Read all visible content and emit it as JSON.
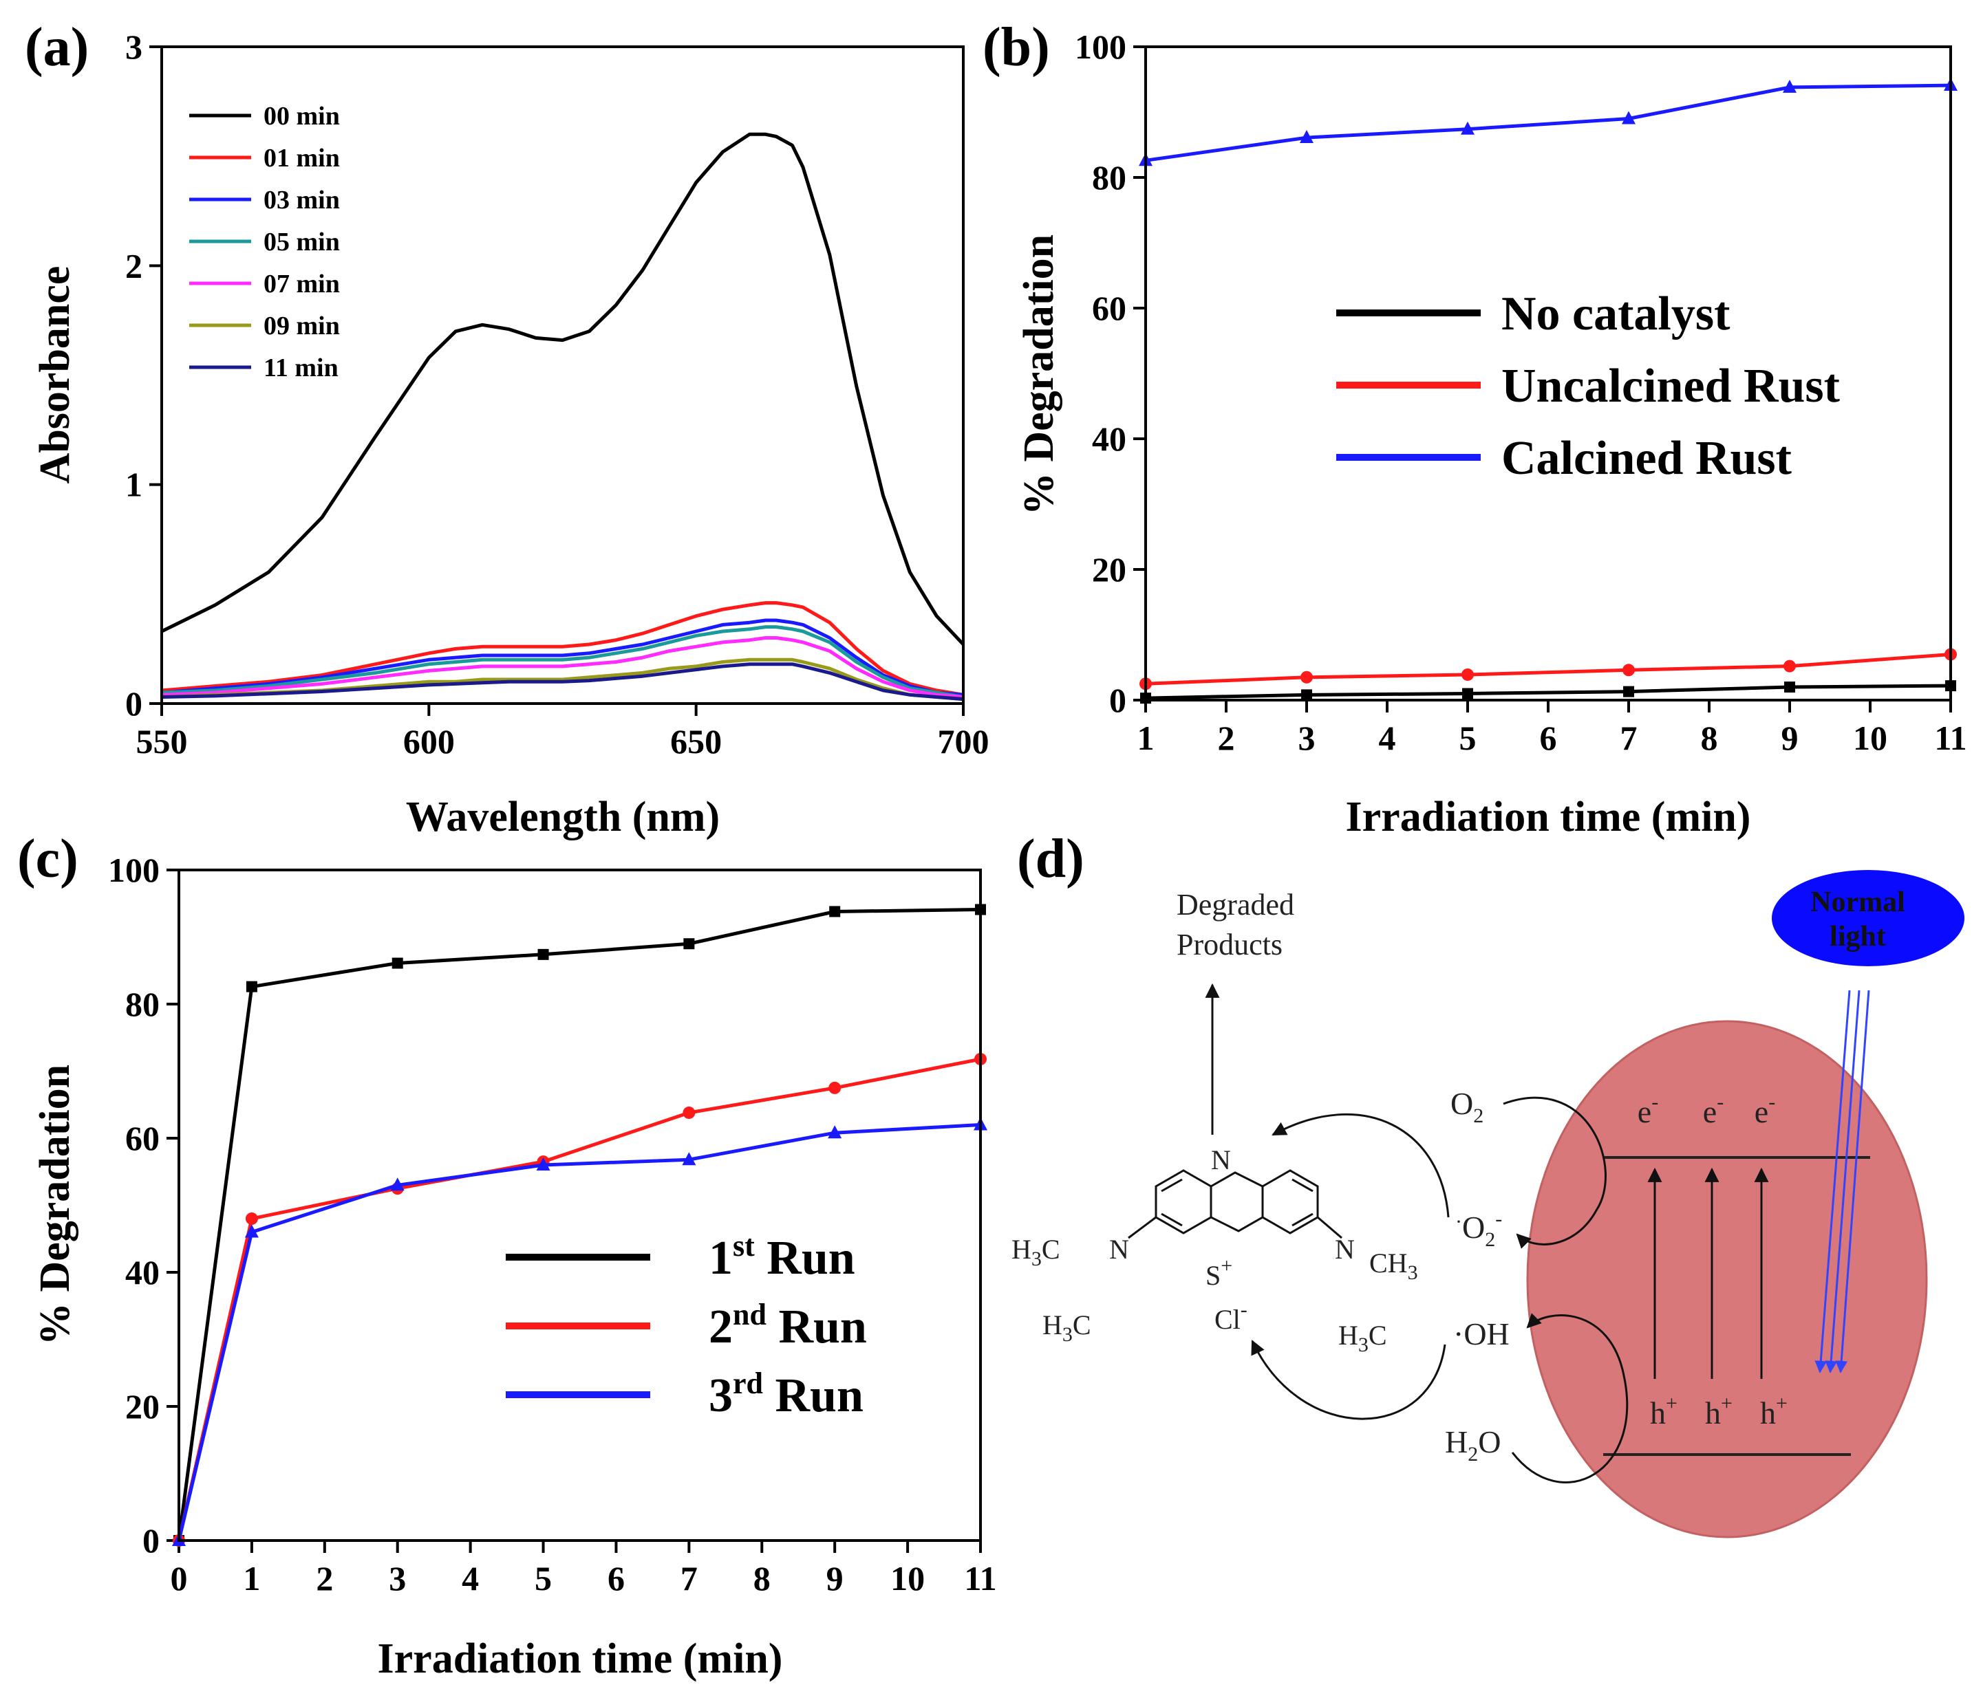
{
  "colors": {
    "black": "#000000",
    "red": "#ff1a1a",
    "blue": "#1a1aff",
    "teal": "#1a9a9a",
    "magenta": "#ff2bff",
    "olive": "#9a9a1a",
    "navy": "#1a1a8c",
    "particle": "#d9787a",
    "light": "#0000ff"
  },
  "chart_data": [
    {
      "panel": "(a)",
      "type": "line",
      "xlabel": "Wavelength (nm)",
      "ylabel": "Absorbance",
      "xlim": [
        550,
        700
      ],
      "ylim": [
        0,
        3
      ],
      "xticks": [
        550,
        600,
        650,
        700
      ],
      "yticks": [
        0,
        1,
        2,
        3
      ],
      "legend_position": "top-left",
      "x": [
        550,
        560,
        570,
        580,
        590,
        600,
        605,
        610,
        615,
        620,
        625,
        630,
        635,
        640,
        645,
        650,
        655,
        660,
        663,
        665,
        668,
        670,
        675,
        680,
        685,
        690,
        695,
        700
      ],
      "series": [
        {
          "name": "00 min",
          "color": "#000000",
          "values": [
            0.33,
            0.45,
            0.6,
            0.85,
            1.22,
            1.58,
            1.7,
            1.73,
            1.71,
            1.67,
            1.66,
            1.7,
            1.82,
            1.98,
            2.18,
            2.38,
            2.52,
            2.6,
            2.6,
            2.59,
            2.55,
            2.45,
            2.05,
            1.45,
            0.95,
            0.6,
            0.4,
            0.27
          ]
        },
        {
          "name": "01 min",
          "color": "#ff1a1a",
          "values": [
            0.06,
            0.08,
            0.1,
            0.13,
            0.18,
            0.23,
            0.25,
            0.26,
            0.26,
            0.26,
            0.26,
            0.27,
            0.29,
            0.32,
            0.36,
            0.4,
            0.43,
            0.45,
            0.46,
            0.46,
            0.45,
            0.44,
            0.37,
            0.25,
            0.15,
            0.09,
            0.06,
            0.04
          ]
        },
        {
          "name": "03 min",
          "color": "#1a1aff",
          "values": [
            0.05,
            0.07,
            0.09,
            0.12,
            0.16,
            0.2,
            0.21,
            0.22,
            0.22,
            0.22,
            0.22,
            0.23,
            0.25,
            0.27,
            0.3,
            0.33,
            0.36,
            0.37,
            0.38,
            0.38,
            0.37,
            0.36,
            0.3,
            0.21,
            0.13,
            0.08,
            0.05,
            0.04
          ]
        },
        {
          "name": "05 min",
          "color": "#1a9a9a",
          "values": [
            0.05,
            0.06,
            0.08,
            0.11,
            0.14,
            0.18,
            0.19,
            0.2,
            0.2,
            0.2,
            0.2,
            0.21,
            0.23,
            0.25,
            0.28,
            0.31,
            0.33,
            0.34,
            0.35,
            0.35,
            0.34,
            0.33,
            0.28,
            0.19,
            0.12,
            0.07,
            0.05,
            0.03
          ]
        },
        {
          "name": "07 min",
          "color": "#ff2bff",
          "values": [
            0.04,
            0.05,
            0.07,
            0.09,
            0.12,
            0.15,
            0.16,
            0.17,
            0.17,
            0.17,
            0.17,
            0.18,
            0.19,
            0.21,
            0.24,
            0.26,
            0.28,
            0.29,
            0.3,
            0.3,
            0.29,
            0.28,
            0.24,
            0.16,
            0.1,
            0.06,
            0.04,
            0.03
          ]
        },
        {
          "name": "09 min",
          "color": "#9a9a1a",
          "values": [
            0.03,
            0.04,
            0.05,
            0.06,
            0.08,
            0.1,
            0.1,
            0.11,
            0.11,
            0.11,
            0.11,
            0.12,
            0.13,
            0.14,
            0.16,
            0.17,
            0.19,
            0.2,
            0.2,
            0.2,
            0.2,
            0.19,
            0.16,
            0.11,
            0.07,
            0.04,
            0.03,
            0.02
          ]
        },
        {
          "name": "11 min",
          "color": "#1a1a8c",
          "values": [
            0.03,
            0.035,
            0.045,
            0.055,
            0.07,
            0.085,
            0.09,
            0.095,
            0.1,
            0.1,
            0.1,
            0.105,
            0.115,
            0.125,
            0.14,
            0.155,
            0.17,
            0.18,
            0.18,
            0.18,
            0.18,
            0.17,
            0.14,
            0.1,
            0.06,
            0.04,
            0.03,
            0.02
          ]
        }
      ]
    },
    {
      "panel": "(b)",
      "type": "line",
      "xlabel": "Irradiation time (min)",
      "ylabel": "% Degradation",
      "xlim": [
        1,
        11
      ],
      "ylim": [
        0,
        100
      ],
      "xticks": [
        1,
        2,
        3,
        4,
        5,
        6,
        7,
        8,
        9,
        10,
        11
      ],
      "yticks": [
        0,
        20,
        40,
        60,
        80,
        100
      ],
      "legend_position": "center-right",
      "x": [
        1,
        3,
        5,
        7,
        9,
        11
      ],
      "series": [
        {
          "name": "No catalyst",
          "color": "#000000",
          "marker": "square",
          "values": [
            0.3,
            0.8,
            1.0,
            1.3,
            2.0,
            2.2
          ]
        },
        {
          "name": "Uncalcined Rust",
          "color": "#ff1a1a",
          "marker": "circle",
          "values": [
            2.5,
            3.5,
            3.9,
            4.6,
            5.2,
            7.0
          ]
        },
        {
          "name": "Calcined Rust",
          "color": "#1a1aff",
          "marker": "triangle",
          "values": [
            82.6,
            86.1,
            87.4,
            89.0,
            93.8,
            94.1
          ]
        }
      ]
    },
    {
      "panel": "(c)",
      "type": "line",
      "xlabel": "Irradiation time (min)",
      "ylabel": "% Degradation",
      "xlim": [
        0,
        11
      ],
      "ylim": [
        0,
        100
      ],
      "xticks": [
        0,
        1,
        2,
        3,
        4,
        5,
        6,
        7,
        8,
        9,
        10,
        11
      ],
      "yticks": [
        0,
        20,
        40,
        60,
        80,
        100
      ],
      "legend_position": "bottom-right",
      "x": [
        0,
        1,
        3,
        5,
        7,
        9,
        11
      ],
      "series": [
        {
          "name": "1st Run",
          "base": "1",
          "sup": "st",
          "rest": " Run",
          "color": "#000000",
          "marker": "square",
          "values": [
            0,
            82.6,
            86.1,
            87.4,
            89.0,
            93.8,
            94.1
          ]
        },
        {
          "name": "2nd Run",
          "base": "2",
          "sup": "nd",
          "rest": " Run",
          "color": "#ff1a1a",
          "marker": "circle",
          "values": [
            0,
            48.0,
            52.5,
            56.5,
            63.8,
            67.5,
            71.8
          ]
        },
        {
          "name": "3rd Run",
          "base": "3",
          "sup": "rd",
          "rest": " Run",
          "color": "#1a1aff",
          "marker": "triangle",
          "values": [
            0,
            46.0,
            53.0,
            56.0,
            56.8,
            60.8,
            62.0
          ]
        }
      ]
    }
  ],
  "diagram": {
    "panel": "(d)",
    "degraded_line1": "Degraded",
    "degraded_line2": "Products",
    "light_line1": "Normal",
    "light_line2": "light",
    "o2": "O",
    "o2_sub": "2",
    "superoxide_pre": "·",
    "superoxide": "O",
    "superoxide_sub": "2",
    "superoxide_sup": "-",
    "hydroxyl": "·OH",
    "water": "H",
    "water_sub": "2",
    "water_tail": "O",
    "electron": "e",
    "electron_sup": "-",
    "hole": "h",
    "hole_sup": "+",
    "mb_n": "N",
    "mb_s": "S",
    "mb_s_sup": "+",
    "mb_cl": "Cl",
    "mb_cl_sup": "-",
    "mb_n_left": "N",
    "mb_n_right": "N",
    "mb_h3c_1": "H",
    "mb_h3c_1_sub": "3",
    "mb_h3c_1_tail": "C",
    "mb_h3c_2": "H",
    "mb_h3c_2_sub": "3",
    "mb_h3c_2_tail": "C",
    "mb_h3c_3": "H",
    "mb_h3c_3_sub": "3",
    "mb_h3c_3_tail": "C",
    "mb_ch3": "CH",
    "mb_ch3_sub": "3"
  }
}
